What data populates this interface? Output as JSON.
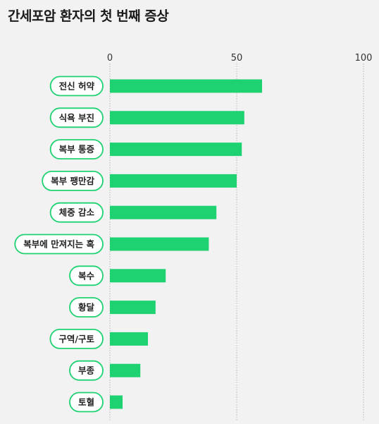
{
  "chart_data": {
    "type": "bar",
    "orientation": "horizontal",
    "title": "간세포암 환자의 첫 번째 증상",
    "categories": [
      "전신 허약",
      "식욕 부진",
      "복부 통증",
      "복부 팽만감",
      "체중 감소",
      "복부에 만져지는 혹",
      "복수",
      "황달",
      "구역/구토",
      "부종",
      "토혈"
    ],
    "values": [
      60,
      53,
      52,
      50,
      42,
      39,
      22,
      18,
      15,
      12,
      5
    ],
    "xlim": [
      0,
      100
    ],
    "xticks": [
      0,
      50,
      100
    ],
    "grid": true,
    "colors": {
      "bar": "#1ed272",
      "label_border": "#1ed272",
      "grid": "#b5b5b5"
    }
  }
}
